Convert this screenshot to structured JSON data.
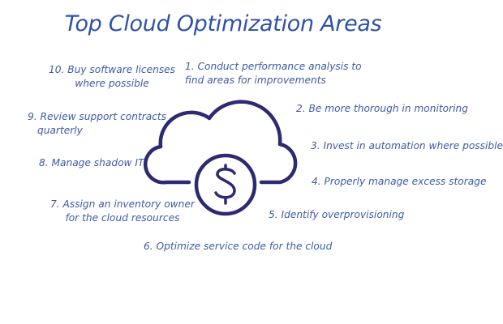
{
  "title": "Top Cloud Optimization Areas",
  "icon": "cloud-dollar-icon",
  "colors": {
    "text": "#3d5aa8",
    "title": "#2f52a6",
    "icon": "#2b2a72"
  },
  "items": [
    {
      "line1": "1. Conduct performance analysis to",
      "line2": "find areas for improvements"
    },
    {
      "line1": "2. Be more thorough in monitoring"
    },
    {
      "line1": "3. Invest in automation where possible"
    },
    {
      "line1": "4. Properly manage excess storage"
    },
    {
      "line1": "5. Identify overprovisioning"
    },
    {
      "line1": "6. Optimize service code for the cloud"
    },
    {
      "line1": "7. Assign an inventory owner",
      "line2": "for the cloud resources"
    },
    {
      "line1": "8. Manage shadow IT"
    },
    {
      "line1": "9. Review support contracts",
      "line2": "quarterly"
    },
    {
      "line1": "10. Buy software licenses",
      "line2": "where possible"
    }
  ]
}
